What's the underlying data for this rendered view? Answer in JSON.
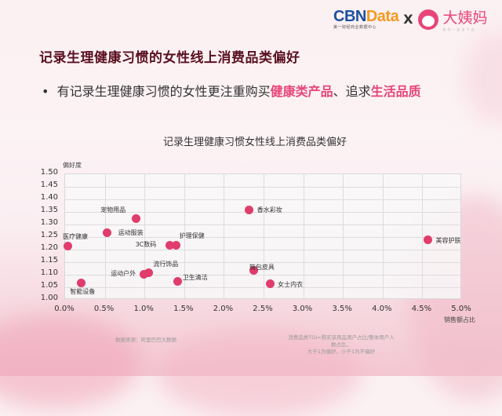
{
  "header": {
    "logo_cbn_part1": "CBN",
    "logo_cbn_part2": "Data",
    "logo_cbn_sub": "第一财经商业数据中心",
    "logo_times": "X",
    "logo_partner": "大姨妈",
    "logo_partner_sub": "有你一起走下去"
  },
  "slide": {
    "title": "记录生理健康习惯的女性线上消费品类偏好",
    "bullet_prefix": "有记录生理健康习惯的女性更注重购买",
    "bullet_hl1": "健康类产品",
    "bullet_mid": "、追求",
    "bullet_hl2": "生活品质"
  },
  "footer": {
    "source": "数据来源：阿里巴巴大数据",
    "note_line1": "消费品类TGI=购买该用品用户占比/整体用户人数占比，",
    "note_line2": "大于1为偏好，小于1为不偏好"
  },
  "colors": {
    "point": "#e03c6c",
    "highlight": "#e8457a",
    "title": "#5a1020"
  },
  "chart_data": {
    "type": "scatter",
    "title": "记录生理健康习惯女性线上消费品类偏好",
    "xlabel": "销售额占比",
    "ylabel": "偏好度",
    "xlim": [
      0,
      5.0
    ],
    "ylim": [
      1.0,
      1.5
    ],
    "grid": true,
    "x_ticks": [
      "0.0%",
      "0.5%",
      "1.0%",
      "1.5%",
      "2.0%",
      "2.5%",
      "3.0%",
      "3.5%",
      "4.0%",
      "4.5%",
      "5.0%"
    ],
    "y_ticks": [
      "1.00",
      "1.05",
      "1.10",
      "1.15",
      "1.20",
      "1.25",
      "1.30",
      "1.35",
      "1.40",
      "1.45",
      "1.50"
    ],
    "points": [
      {
        "label": "医疗健康",
        "x": 0.04,
        "y": 1.21
      },
      {
        "label": "智能设备",
        "x": 0.21,
        "y": 1.065
      },
      {
        "label": "运动服装",
        "x": 0.54,
        "y": 1.265
      },
      {
        "label": "宠物用品",
        "x": 0.9,
        "y": 1.32
      },
      {
        "label": "运动户外",
        "x": 1.0,
        "y": 1.1
      },
      {
        "label": "流行饰品",
        "x": 1.06,
        "y": 1.105
      },
      {
        "label": "3C数码",
        "x": 1.33,
        "y": 1.215
      },
      {
        "label": "护理保健",
        "x": 1.41,
        "y": 1.215
      },
      {
        "label": "卫生清洁",
        "x": 1.43,
        "y": 1.07
      },
      {
        "label": "香水彩妆",
        "x": 2.33,
        "y": 1.355
      },
      {
        "label": "箱包皮具",
        "x": 2.39,
        "y": 1.115
      },
      {
        "label": "女士内衣",
        "x": 2.59,
        "y": 1.06
      },
      {
        "label": "美容护肤",
        "x": 4.58,
        "y": 1.235
      }
    ]
  }
}
